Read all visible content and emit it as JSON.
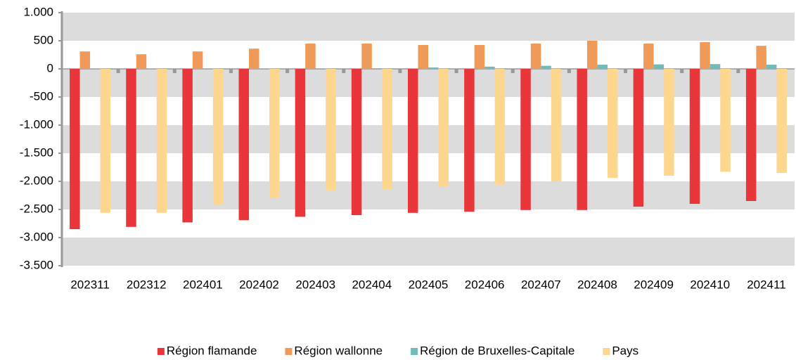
{
  "chart_data": {
    "type": "bar",
    "categories": [
      "202311",
      "202312",
      "202401",
      "202402",
      "202403",
      "202404",
      "202405",
      "202406",
      "202407",
      "202408",
      "202409",
      "202410",
      "202411"
    ],
    "series": [
      {
        "name": "Région flamande",
        "color": "#e8363b",
        "values": [
          -2850,
          -2810,
          -2730,
          -2690,
          -2630,
          -2600,
          -2560,
          -2540,
          -2510,
          -2510,
          -2450,
          -2400,
          -2350
        ]
      },
      {
        "name": "Région wallonne",
        "color": "#f09a5a",
        "values": [
          310,
          260,
          310,
          360,
          450,
          450,
          425,
          425,
          450,
          500,
          450,
          475,
          410
        ]
      },
      {
        "name": "Région de Bruxelles-Capitale",
        "color": "#6fbcbc",
        "values": [
          5,
          5,
          5,
          5,
          5,
          10,
          25,
          40,
          55,
          75,
          80,
          85,
          75
        ]
      },
      {
        "name": "Pays",
        "color": "#fed78f",
        "values": [
          -2560,
          -2560,
          -2410,
          -2300,
          -2160,
          -2140,
          -2100,
          -2060,
          -2000,
          -1940,
          -1900,
          -1830,
          -1850
        ]
      }
    ],
    "ylim": [
      -3500,
      1000
    ],
    "yticks": [
      {
        "value": -3500,
        "label": "-3.500"
      },
      {
        "value": -3000,
        "label": "-3.000"
      },
      {
        "value": -2500,
        "label": "-2.500"
      },
      {
        "value": -2000,
        "label": "-2.000"
      },
      {
        "value": -1500,
        "label": "-1.500"
      },
      {
        "value": -1000,
        "label": "-1.000"
      },
      -500,
      0,
      500,
      {
        "value": 1000,
        "label": "1.000"
      }
    ],
    "grid": "bands",
    "legend": "bottom"
  }
}
